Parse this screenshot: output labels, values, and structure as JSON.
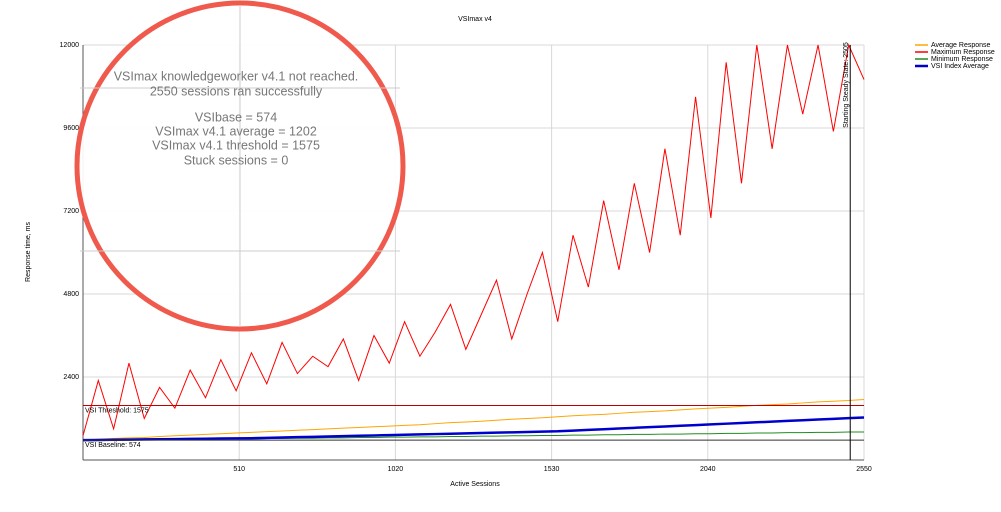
{
  "chart_data": {
    "type": "line",
    "title": "VSImax v4",
    "xlabel": "Active Sessions",
    "ylabel": "Response time, ms",
    "x": [
      0,
      50,
      100,
      150,
      200,
      250,
      300,
      350,
      400,
      450,
      500,
      550,
      600,
      650,
      700,
      750,
      800,
      850,
      900,
      950,
      1000,
      1050,
      1100,
      1150,
      1200,
      1250,
      1300,
      1350,
      1400,
      1450,
      1500,
      1550,
      1600,
      1650,
      1700,
      1750,
      1800,
      1850,
      1900,
      1950,
      2000,
      2050,
      2100,
      2150,
      2200,
      2250,
      2300,
      2350,
      2400,
      2450,
      2500,
      2550
    ],
    "series": [
      {
        "name": "Average Response",
        "color": "#ffa500",
        "values": [
          580,
          600,
          620,
          640,
          650,
          680,
          700,
          720,
          740,
          760,
          780,
          800,
          820,
          840,
          860,
          880,
          900,
          920,
          940,
          960,
          980,
          1000,
          1020,
          1050,
          1080,
          1100,
          1120,
          1150,
          1180,
          1200,
          1220,
          1250,
          1280,
          1300,
          1320,
          1350,
          1380,
          1400,
          1420,
          1450,
          1480,
          1500,
          1520,
          1550,
          1580,
          1600,
          1620,
          1650,
          1680,
          1700,
          1720,
          1750
        ]
      },
      {
        "name": "Maximum Response",
        "color": "#ff0000",
        "values": [
          700,
          2300,
          900,
          2800,
          1200,
          2100,
          1500,
          2600,
          1800,
          2900,
          2000,
          3100,
          2200,
          3400,
          2500,
          3000,
          2700,
          3500,
          2300,
          3600,
          2800,
          4000,
          3000,
          3700,
          4500,
          3200,
          4200,
          5200,
          3500,
          4800,
          6000,
          4000,
          6500,
          5000,
          7500,
          5500,
          8000,
          6000,
          9000,
          6500,
          10500,
          7000,
          11500,
          8000,
          12000,
          9000,
          12000,
          10000,
          12000,
          9500,
          12000,
          11000
        ]
      },
      {
        "name": "Minimum Response",
        "color": "#228b22",
        "values": [
          560,
          560,
          570,
          570,
          580,
          580,
          590,
          590,
          600,
          600,
          610,
          610,
          620,
          620,
          630,
          630,
          640,
          640,
          650,
          650,
          660,
          660,
          670,
          670,
          680,
          680,
          690,
          690,
          700,
          700,
          710,
          710,
          720,
          720,
          730,
          730,
          740,
          740,
          750,
          750,
          760,
          760,
          770,
          770,
          780,
          780,
          790,
          790,
          800,
          800,
          810,
          810
        ]
      },
      {
        "name": "VSI Index Average",
        "color": "#0000cd",
        "values": [
          574,
          580,
          585,
          590,
          595,
          600,
          605,
          610,
          615,
          620,
          625,
          630,
          640,
          650,
          660,
          670,
          680,
          690,
          700,
          710,
          720,
          730,
          740,
          750,
          760,
          770,
          780,
          790,
          800,
          810,
          820,
          830,
          850,
          870,
          890,
          910,
          930,
          950,
          970,
          990,
          1010,
          1030,
          1050,
          1070,
          1090,
          1110,
          1130,
          1150,
          1170,
          1190,
          1210,
          1230
        ]
      }
    ],
    "xlim": [
      0,
      2550
    ],
    "xticks": [
      510,
      1020,
      1530,
      2040,
      2550
    ],
    "ylim": [
      0,
      12000
    ],
    "yticks": [
      2400,
      4800,
      7200,
      9600,
      12000
    ],
    "grid": true,
    "legend": "top-right",
    "threshold": {
      "label": "VSI Threshold: 1575",
      "value": 1575
    },
    "baseline": {
      "label": "VSI Baseline: 574",
      "value": 574
    },
    "steady_state": {
      "label": "Starting Steady State: 2505",
      "value": 2505
    },
    "callout": [
      "VSImax knowledgeworker v4.1 not reached.",
      "2550 sessions ran successfully",
      "VSIbase = 574",
      "VSImax v4.1 average = 1202",
      "VSImax v4.1 threshold = 1575",
      "Stuck sessions = 0"
    ]
  }
}
